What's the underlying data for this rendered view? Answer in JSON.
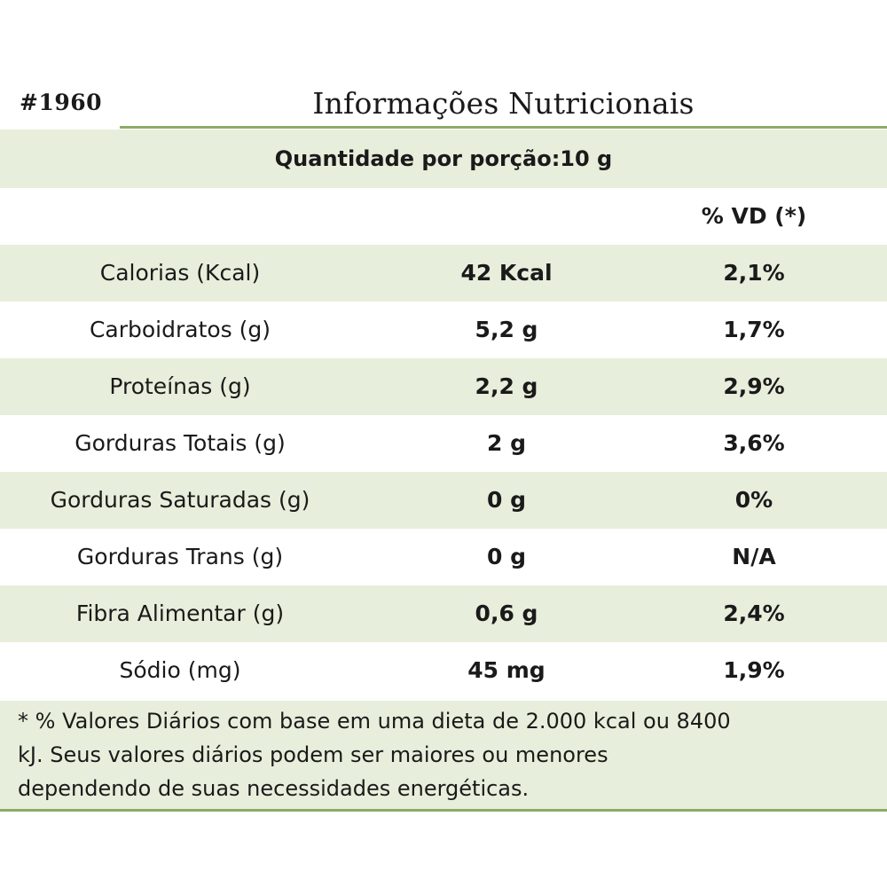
{
  "header": {
    "code": "#1960",
    "title": "Informações Nutricionais"
  },
  "portion": "Quantidade por porção:10 g",
  "vd_header": "% VD (*)",
  "rows": [
    {
      "nutrient": "Calorias (Kcal)",
      "amount": "42 Kcal",
      "vd": "2,1%"
    },
    {
      "nutrient": "Carboidratos (g)",
      "amount": "5,2 g",
      "vd": "1,7%"
    },
    {
      "nutrient": "Proteínas (g)",
      "amount": "2,2 g",
      "vd": "2,9%"
    },
    {
      "nutrient": "Gorduras Totais (g)",
      "amount": "2 g",
      "vd": "3,6%"
    },
    {
      "nutrient": "Gorduras Saturadas (g)",
      "amount": "0 g",
      "vd": "0%"
    },
    {
      "nutrient": "Gorduras Trans (g)",
      "amount": "0 g",
      "vd": "N/A"
    },
    {
      "nutrient": "Fibra Alimentar (g)",
      "amount": "0,6 g",
      "vd": "2,4%"
    },
    {
      "nutrient": "Sódio (mg)",
      "amount": "45 mg",
      "vd": "1,9%"
    }
  ],
  "footnote": {
    "line1": "* % Valores Diários com base em uma dieta de 2.000 kcal ou 8400",
    "line2": "kJ. Seus valores diários podem ser maiores ou menores",
    "line3": "dependendo de suas necessidades energéticas."
  },
  "colors": {
    "shade": "#e7eedb",
    "rule": "#8dab67"
  }
}
